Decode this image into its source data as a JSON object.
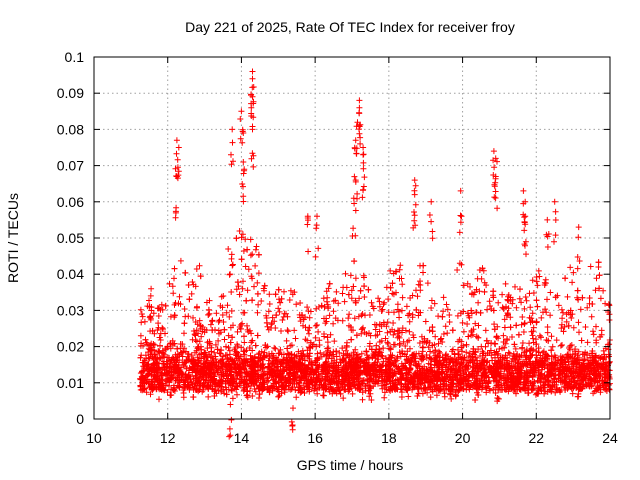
{
  "chart_data": {
    "type": "scatter",
    "title": "Day 221 of 2025, Rate Of TEC Index for receiver froy",
    "xlabel": "GPS time / hours",
    "ylabel": "ROTI / TECUs",
    "xlim": [
      10,
      24
    ],
    "ylim": [
      0,
      0.1
    ],
    "x_ticks": [
      10,
      12,
      14,
      16,
      18,
      20,
      22,
      24
    ],
    "x_tick_labels": [
      "10",
      "12",
      "14",
      "16",
      "18",
      "20",
      "22",
      "24"
    ],
    "y_ticks": [
      0,
      0.01,
      0.02,
      0.03,
      0.04,
      0.05,
      0.06,
      0.07,
      0.08,
      0.09,
      0.1
    ],
    "y_tick_labels": [
      "0",
      "0.01",
      "0.02",
      "0.03",
      "0.04",
      "0.05",
      "0.06",
      "0.07",
      "0.08",
      "0.09",
      "0.1"
    ],
    "grid": true,
    "marker": "+",
    "marker_color": "#ff0000",
    "series": [
      {
        "name": "ROTI",
        "x_range": [
          11.25,
          24.0
        ],
        "baseline": 0.013,
        "typical_spread": 0.025,
        "notable_points": [
          {
            "x": 14.3,
            "y": 0.096
          },
          {
            "x": 14.3,
            "y": 0.094
          },
          {
            "x": 14.3,
            "y": 0.089
          },
          {
            "x": 14.0,
            "y": 0.085
          },
          {
            "x": 13.75,
            "y": 0.08
          },
          {
            "x": 14.3,
            "y": 0.08
          },
          {
            "x": 14.05,
            "y": 0.079
          },
          {
            "x": 12.25,
            "y": 0.077
          },
          {
            "x": 12.3,
            "y": 0.075
          },
          {
            "x": 12.25,
            "y": 0.067
          },
          {
            "x": 14.05,
            "y": 0.071
          },
          {
            "x": 17.2,
            "y": 0.088
          },
          {
            "x": 17.2,
            "y": 0.086
          },
          {
            "x": 17.15,
            "y": 0.082
          },
          {
            "x": 17.1,
            "y": 0.077
          },
          {
            "x": 17.3,
            "y": 0.075
          },
          {
            "x": 17.3,
            "y": 0.073
          },
          {
            "x": 17.1,
            "y": 0.066
          },
          {
            "x": 17.05,
            "y": 0.061
          },
          {
            "x": 20.85,
            "y": 0.074
          },
          {
            "x": 20.9,
            "y": 0.072
          },
          {
            "x": 20.9,
            "y": 0.067
          },
          {
            "x": 21.65,
            "y": 0.063
          },
          {
            "x": 21.7,
            "y": 0.06
          },
          {
            "x": 21.7,
            "y": 0.056
          },
          {
            "x": 22.5,
            "y": 0.06
          },
          {
            "x": 22.3,
            "y": 0.055
          },
          {
            "x": 23.15,
            "y": 0.053
          },
          {
            "x": 18.7,
            "y": 0.066
          },
          {
            "x": 18.7,
            "y": 0.062
          },
          {
            "x": 19.15,
            "y": 0.06
          },
          {
            "x": 19.95,
            "y": 0.063
          },
          {
            "x": 15.8,
            "y": 0.056
          },
          {
            "x": 16.05,
            "y": 0.056
          },
          {
            "x": 11.55,
            "y": 0.036
          },
          {
            "x": 11.3,
            "y": 0.029
          },
          {
            "x": 15.4,
            "y": 0.003
          },
          {
            "x": 13.7,
            "y": 0.004
          }
        ]
      }
    ]
  }
}
